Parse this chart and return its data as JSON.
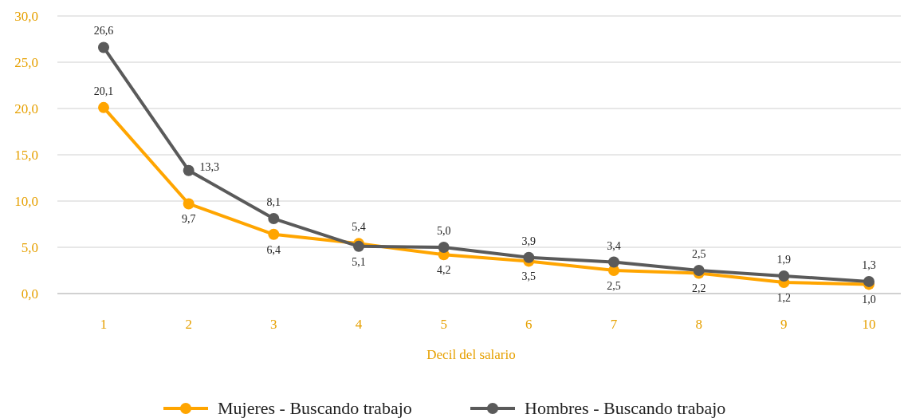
{
  "chart_data": {
    "type": "line",
    "xlabel": "Decil del salario",
    "categories": [
      "1",
      "2",
      "3",
      "4",
      "5",
      "6",
      "7",
      "8",
      "9",
      "10"
    ],
    "ylim": [
      0,
      30
    ],
    "yticks": [
      {
        "value": 0,
        "label": "0,0"
      },
      {
        "value": 5,
        "label": "5,0"
      },
      {
        "value": 10,
        "label": "10,0"
      },
      {
        "value": 15,
        "label": "15,0"
      },
      {
        "value": 20,
        "label": "20,0"
      },
      {
        "value": 25,
        "label": "25,0"
      },
      {
        "value": 30,
        "label": "30,0"
      }
    ],
    "grid": "y",
    "legend": "bottom",
    "marker": "circle",
    "line_style": "solid",
    "series": [
      {
        "name": "Mujeres - Buscando trabajo",
        "color": "#ffa500",
        "values": [
          20.1,
          9.7,
          6.4,
          5.4,
          4.2,
          3.5,
          2.5,
          2.2,
          1.2,
          1.0
        ],
        "value_labels": [
          "20,1",
          "9,7",
          "6,4",
          "5,4",
          "4,2",
          "3,5",
          "2,5",
          "2,2",
          "1,2",
          "1,0"
        ]
      },
      {
        "name": "Hombres - Buscando trabajo",
        "color": "#5a5a5a",
        "values": [
          26.6,
          13.3,
          8.1,
          5.1,
          5.0,
          3.9,
          3.4,
          2.5,
          1.9,
          1.3
        ],
        "value_labels": [
          "26,6",
          "13,3",
          "8,1",
          "5,1",
          "5,0",
          "3,9",
          "3,4",
          "2,5",
          "1,9",
          "1,3"
        ]
      }
    ]
  }
}
